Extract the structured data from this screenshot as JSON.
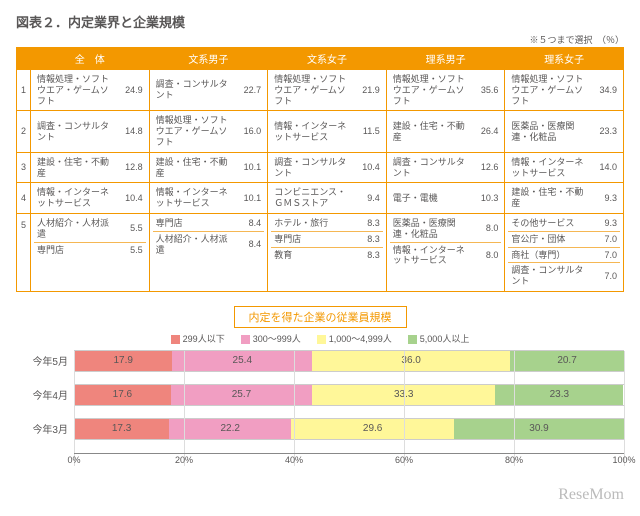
{
  "title": "図表２．内定業界と企業規模",
  "note": "※５つまで選択　（％）",
  "headers": [
    "全　体",
    "文系男子",
    "文系女子",
    "理系男子",
    "理系女子"
  ],
  "ranks": [
    "1",
    "2",
    "3",
    "4",
    "5"
  ],
  "table": {
    "c0": [
      [
        "情報処理・ソフトウエア・ゲームソフト",
        "24.9"
      ],
      [
        "調査・コンサルタント",
        "14.8"
      ],
      [
        "建設・住宅・不動産",
        "12.8"
      ],
      [
        "情報・インターネットサービス",
        "10.4"
      ],
      [
        "人材紹介・人材派遣",
        "5.5"
      ],
      [
        "専門店",
        "5.5"
      ]
    ],
    "c1": [
      [
        "調査・コンサルタント",
        "22.7"
      ],
      [
        "情報処理・ソフトウエア・ゲームソフト",
        "16.0"
      ],
      [
        "建設・住宅・不動産",
        "10.1"
      ],
      [
        "情報・インターネットサービス",
        "10.1"
      ],
      [
        "専門店",
        "8.4"
      ],
      [
        "人材紹介・人材派遣",
        "8.4"
      ]
    ],
    "c2": [
      [
        "情報処理・ソフトウエア・ゲームソフト",
        "21.9"
      ],
      [
        "情報・インターネットサービス",
        "11.5"
      ],
      [
        "調査・コンサルタント",
        "10.4"
      ],
      [
        "コンビニエンス・ＧＭＳストア",
        "9.4"
      ],
      [
        "ホテル・旅行",
        "8.3"
      ],
      [
        "専門店",
        "8.3"
      ],
      [
        "教育",
        "8.3"
      ]
    ],
    "c3": [
      [
        "情報処理・ソフトウエア・ゲームソフト",
        "35.6"
      ],
      [
        "建設・住宅・不動産",
        "26.4"
      ],
      [
        "調査・コンサルタント",
        "12.6"
      ],
      [
        "電子・電機",
        "10.3"
      ],
      [
        "医薬品・医療関連・化粧品",
        "8.0"
      ],
      [
        "情報・インターネットサービス",
        "8.0"
      ]
    ],
    "c4": [
      [
        "情報処理・ソフトウエア・ゲームソフト",
        "34.9"
      ],
      [
        "医薬品・医療関連・化粧品",
        "23.3"
      ],
      [
        "情報・インターネットサービス",
        "14.0"
      ],
      [
        "建設・住宅・不動産",
        "9.3"
      ],
      [
        "その他サービス",
        "9.3"
      ],
      [
        "官公庁・団体",
        "7.0"
      ],
      [
        "商社（専門）",
        "7.0"
      ],
      [
        "調査・コンサルタント",
        "7.0"
      ]
    ]
  },
  "chart": {
    "title": "内定を得た企業の従業員規模",
    "legend": [
      "299人以下",
      "300～999人",
      "1,000～4,999人",
      "5,000人以上"
    ],
    "colors": [
      "#ef857d",
      "#f19ec2",
      "#fff799",
      "#a7d28d"
    ],
    "rows": [
      {
        "label": "今年5月",
        "v": [
          17.9,
          25.4,
          36.0,
          20.7
        ]
      },
      {
        "label": "今年4月",
        "v": [
          17.6,
          25.7,
          33.3,
          23.3
        ]
      },
      {
        "label": "今年3月",
        "v": [
          17.3,
          22.2,
          29.6,
          30.9
        ]
      }
    ],
    "axis": [
      "0%",
      "20%",
      "40%",
      "60%",
      "80%",
      "100%"
    ]
  },
  "logo": "ReseMom"
}
